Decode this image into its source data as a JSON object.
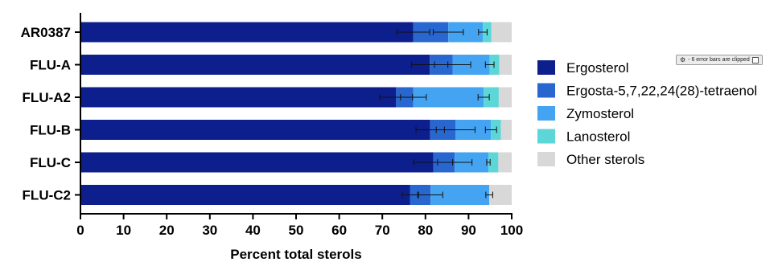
{
  "chart_data": {
    "type": "bar",
    "orientation": "horizontal",
    "stacked": true,
    "categories": [
      "AR0387",
      "FLU-A",
      "FLU-A2",
      "FLU-B",
      "FLU-C",
      "FLU-C2"
    ],
    "series": [
      {
        "name": "Ergosterol",
        "color": "#0d1f8c",
        "values": [
          77.2,
          81.0,
          73.2,
          81.1,
          81.8,
          76.4
        ]
      },
      {
        "name": "Ergosta-5,7,22,24(28)-tetraenol",
        "color": "#2866d0",
        "values": [
          8.1,
          5.3,
          4.0,
          5.9,
          5.0,
          4.8
        ]
      },
      {
        "name": "Zymosterol",
        "color": "#45a4f2",
        "values": [
          8.0,
          8.6,
          16.3,
          8.2,
          7.8,
          13.6
        ]
      },
      {
        "name": "Lanosterol",
        "color": "#5dd6d8",
        "values": [
          2.0,
          2.2,
          3.5,
          2.3,
          2.3,
          0.0
        ]
      },
      {
        "name": "Other sterols",
        "color": "#d8d8d8",
        "values": [
          4.7,
          2.9,
          3.0,
          2.5,
          3.1,
          5.2
        ]
      }
    ],
    "error_bars": [
      [
        3.8,
        3.5,
        1.0
      ],
      [
        4.2,
        4.2,
        1.0
      ],
      [
        3.8,
        3.0,
        1.3
      ],
      [
        3.3,
        4.5,
        1.3
      ],
      [
        4.5,
        4.0,
        0.4
      ],
      [
        1.8,
        2.8,
        0.8
      ]
    ],
    "xlabel": "Percent total sterols",
    "ylabel": "",
    "xlim": [
      0,
      100
    ],
    "xticks": [
      0,
      10,
      20,
      30,
      40,
      50,
      60,
      70,
      80,
      90,
      100
    ],
    "legend_position": "right",
    "grid": false
  },
  "notice": {
    "text": "- 6 error bars are clipped",
    "icon": "gear-icon",
    "checkbox_icon": "checkbox-icon"
  }
}
